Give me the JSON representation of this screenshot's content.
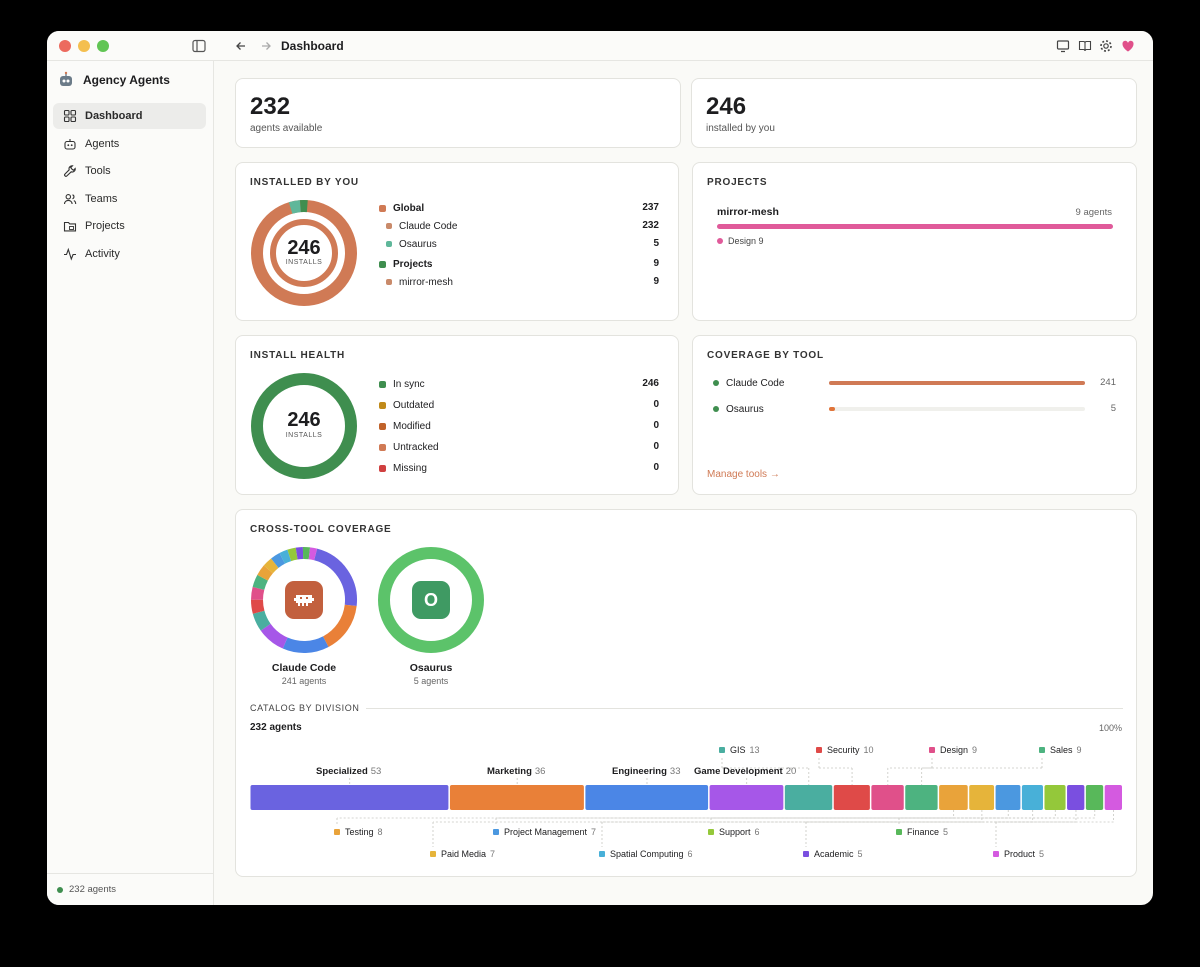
{
  "window": {
    "title": "Dashboard"
  },
  "sidebar": {
    "brand": "Agency Agents",
    "items": [
      {
        "label": "Dashboard",
        "icon": "grid-icon",
        "active": true
      },
      {
        "label": "Agents",
        "icon": "bot-icon"
      },
      {
        "label": "Tools",
        "icon": "wrench-icon"
      },
      {
        "label": "Teams",
        "icon": "users-icon"
      },
      {
        "label": "Projects",
        "icon": "folder-icon"
      },
      {
        "label": "Activity",
        "icon": "activity-icon"
      }
    ],
    "footer": "232 agents"
  },
  "stats": {
    "available": {
      "value": "232",
      "label": "agents available"
    },
    "installed": {
      "value": "246",
      "label": "installed by you"
    }
  },
  "installed_by_you": {
    "title": "INSTALLED BY YOU",
    "center_value": "246",
    "center_label": "INSTALLS",
    "rows": [
      {
        "label": "Global",
        "value": "237",
        "bold": true,
        "color": "#d07a55"
      },
      {
        "label": "Claude Code",
        "value": "232",
        "bold": false,
        "color": "#c98a6a"
      },
      {
        "label": "Osaurus",
        "value": "5",
        "bold": false,
        "color": "#5fb79a"
      },
      {
        "label": "Projects",
        "value": "9",
        "bold": true,
        "color": "#3f8e4f"
      },
      {
        "label": "mirror-mesh",
        "value": "9",
        "bold": false,
        "color": "#c98a6a"
      }
    ]
  },
  "projects": {
    "title": "PROJECTS",
    "name": "mirror-mesh",
    "count": "9 agents",
    "fill": 1.0,
    "bar_color": "#e05a9a",
    "tag": "Design 9"
  },
  "install_health": {
    "title": "INSTALL HEALTH",
    "center_value": "246",
    "center_label": "INSTALLS",
    "rows": [
      {
        "label": "In sync",
        "value": "246",
        "color": "#3f8e4f"
      },
      {
        "label": "Outdated",
        "value": "0",
        "color": "#c08a1a"
      },
      {
        "label": "Modified",
        "value": "0",
        "color": "#c0622a"
      },
      {
        "label": "Untracked",
        "value": "0",
        "color": "#d07a55"
      },
      {
        "label": "Missing",
        "value": "0",
        "color": "#d04040"
      }
    ]
  },
  "coverage_by_tool": {
    "title": "COVERAGE BY TOOL",
    "rows": [
      {
        "label": "Claude Code",
        "value": "241",
        "fill": 1.0,
        "color": "#d07a55"
      },
      {
        "label": "Osaurus",
        "value": "5",
        "fill": 0.02,
        "color": "#e0743a"
      }
    ],
    "link": "Manage tools →"
  },
  "cross_tool": {
    "title": "CROSS-TOOL COVERAGE",
    "tools": [
      {
        "name": "Claude Code",
        "count": "241 agents",
        "icon": "claude-icon"
      },
      {
        "name": "Osaurus",
        "count": "5 agents",
        "letter": "O",
        "icon": "osaurus-icon"
      }
    ]
  },
  "catalog": {
    "title": "CATALOG BY DIVISION",
    "total": "232 agents",
    "percent": "100%",
    "divisions": [
      {
        "name": "Specialized",
        "value": 53,
        "color": "#6a63e0"
      },
      {
        "name": "Marketing",
        "value": 36,
        "color": "#e98038"
      },
      {
        "name": "Engineering",
        "value": 33,
        "color": "#4b86e6"
      },
      {
        "name": "Game Development",
        "value": 20,
        "color": "#a657e8"
      },
      {
        "name": "GIS",
        "value": 13,
        "color": "#4aaea0"
      },
      {
        "name": "Security",
        "value": 10,
        "color": "#df4a48"
      },
      {
        "name": "Design",
        "value": 9,
        "color": "#e0508a"
      },
      {
        "name": "Sales",
        "value": 9,
        "color": "#4db380"
      },
      {
        "name": "Testing",
        "value": 8,
        "color": "#e9a33a"
      },
      {
        "name": "Paid Media",
        "value": 7,
        "color": "#e6b43a"
      },
      {
        "name": "Project Management",
        "value": 7,
        "color": "#4b98e0"
      },
      {
        "name": "Spatial Computing",
        "value": 6,
        "color": "#48b0d8"
      },
      {
        "name": "Support",
        "value": 6,
        "color": "#94c83a"
      },
      {
        "name": "Academic",
        "value": 5,
        "color": "#7a4fe0"
      },
      {
        "name": "Finance",
        "value": 5,
        "color": "#58b85a"
      },
      {
        "name": "Product",
        "value": 5,
        "color": "#d45ae0"
      }
    ]
  }
}
